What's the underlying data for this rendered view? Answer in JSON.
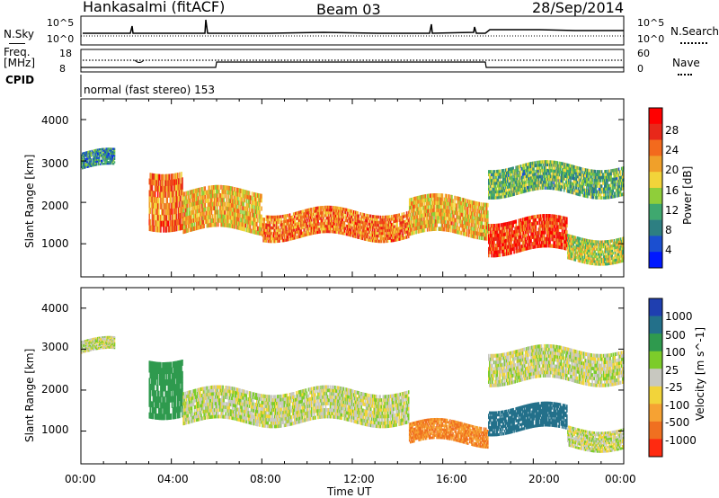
{
  "header": {
    "station": "Hankasalmi (fitACF)",
    "beam": "Beam 03",
    "date": "28/Sep/2014"
  },
  "noise_panel": {
    "left_label": "N.Sky",
    "left_ticks": [
      "10^5",
      "10^0"
    ],
    "right_label": "N.Search",
    "right_ticks": [
      "10^5",
      "10^0"
    ]
  },
  "freq_panel": {
    "left_label_1": "Freq.",
    "left_label_2": "[MHz]",
    "left_ticks": [
      "18",
      "8"
    ],
    "right_label": "Nave",
    "right_ticks": [
      "60",
      "0"
    ]
  },
  "cpid": {
    "label": "CPID",
    "mode": "normal (fast stereo) 153"
  },
  "power_panel": {
    "ylabel": "Slant Range [km]",
    "yticks": [
      "4000",
      "3000",
      "2000",
      "1000"
    ],
    "colorbar_label": "Power [dB]",
    "colorbar_ticks": [
      "28",
      "24",
      "20",
      "16",
      "12",
      "8",
      "4"
    ],
    "colors": [
      "#0018ff",
      "#1b4fd0",
      "#2d7f82",
      "#3fa86f",
      "#8fce3a",
      "#f2d43a",
      "#f0a02a",
      "#f36a1d",
      "#e8281a",
      "#ff0000"
    ]
  },
  "velocity_panel": {
    "ylabel": "Slant Range [km]",
    "yticks": [
      "4000",
      "3000",
      "2000",
      "1000"
    ],
    "colorbar_label": "Velocity [m s^-1]",
    "colorbar_ticks": [
      "1000",
      "500",
      "100",
      "25",
      "-25",
      "-100",
      "-500",
      "-1000"
    ],
    "colors": [
      "#1f3fb0",
      "#23708a",
      "#2f9a4e",
      "#7ccc2a",
      "#c8c8c0",
      "#f2d43a",
      "#f6a233",
      "#f07020",
      "#ff2a10"
    ]
  },
  "xaxis": {
    "label": "Time UT",
    "ticks": [
      "00:00",
      "04:00",
      "08:00",
      "12:00",
      "16:00",
      "20:00",
      "00:00"
    ]
  },
  "chart_data": {
    "type": "heatmap",
    "x_range_hours": [
      0,
      24
    ],
    "y_range_km": [
      200,
      4500
    ],
    "power_bands": [
      {
        "t_start": 0.0,
        "t_end": 1.5,
        "range_low": 2800,
        "range_high": 3200,
        "power_db": 8
      },
      {
        "t_start": 3.0,
        "t_end": 4.5,
        "range_low": 1400,
        "range_high": 2800,
        "power_db": 24
      },
      {
        "t_start": 4.5,
        "t_end": 8.0,
        "range_low": 1300,
        "range_high": 2300,
        "power_db": 20
      },
      {
        "t_start": 8.0,
        "t_end": 14.5,
        "range_low": 1150,
        "range_high": 1800,
        "power_db": 24
      },
      {
        "t_start": 14.5,
        "t_end": 18.0,
        "range_low": 1200,
        "range_high": 2100,
        "power_db": 20
      },
      {
        "t_start": 18.0,
        "t_end": 21.5,
        "range_low": 800,
        "range_high": 1600,
        "power_db": 28
      },
      {
        "t_start": 18.0,
        "t_end": 24.0,
        "range_low": 2200,
        "range_high": 2900,
        "power_db": 12
      },
      {
        "t_start": 21.5,
        "t_end": 24.0,
        "range_low": 600,
        "range_high": 1200,
        "power_db": 16
      }
    ],
    "velocity_bands": [
      {
        "t_start": 0.0,
        "t_end": 1.5,
        "range_low": 2900,
        "range_high": 3200,
        "velocity": 0
      },
      {
        "t_start": 3.0,
        "t_end": 4.5,
        "range_low": 1400,
        "range_high": 2800,
        "velocity": 100
      },
      {
        "t_start": 4.5,
        "t_end": 14.5,
        "range_low": 1200,
        "range_high": 2000,
        "velocity": 0
      },
      {
        "t_start": 14.5,
        "t_end": 18.0,
        "range_low": 700,
        "range_high": 1200,
        "velocity": -300
      },
      {
        "t_start": 18.0,
        "t_end": 21.5,
        "range_low": 1000,
        "range_high": 1600,
        "velocity": 500
      },
      {
        "t_start": 18.0,
        "t_end": 24.0,
        "range_low": 2200,
        "range_high": 3000,
        "velocity": 0
      },
      {
        "t_start": 21.5,
        "t_end": 24.0,
        "range_low": 600,
        "range_high": 1100,
        "velocity": 0
      }
    ]
  }
}
